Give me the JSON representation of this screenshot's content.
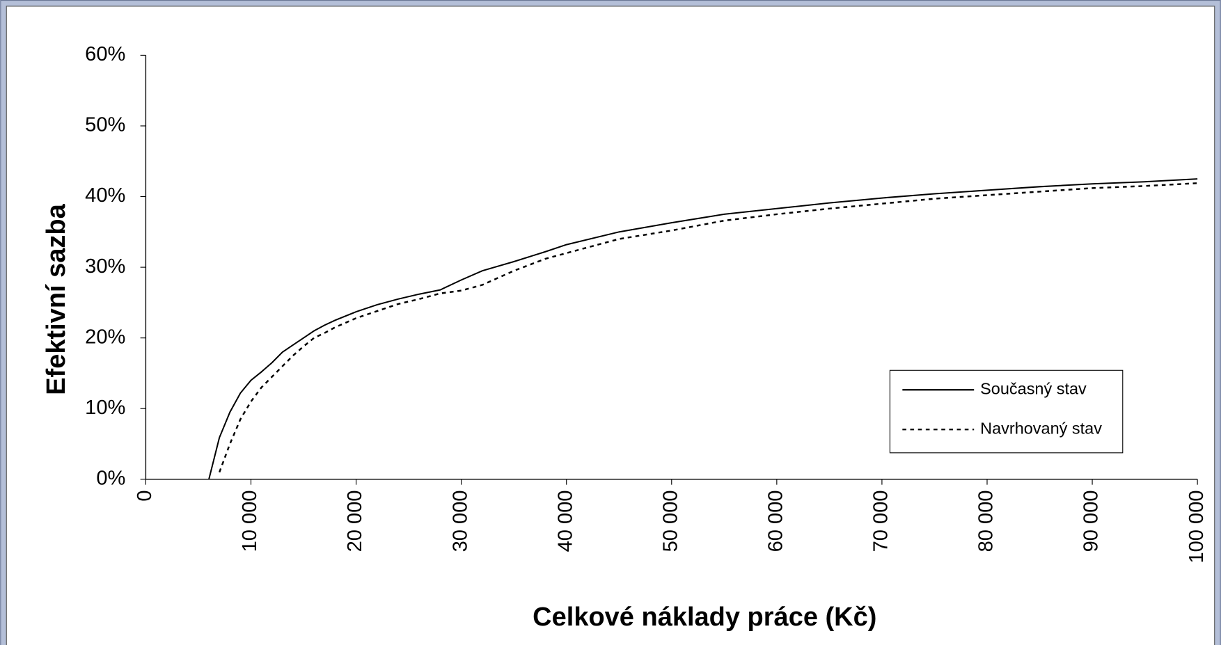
{
  "chart_data": {
    "type": "line",
    "xlabel": "Celkové náklady práce (Kč)",
    "ylabel": "Efektivní sazba",
    "xlim": [
      0,
      100000
    ],
    "ylim": [
      0,
      60
    ],
    "xticks": [
      0,
      {
        "value": 10000,
        "label": "10 000"
      },
      {
        "value": 20000,
        "label": "20 000"
      },
      {
        "value": 30000,
        "label": "30 000"
      },
      {
        "value": 40000,
        "label": "40 000"
      },
      {
        "value": 50000,
        "label": "50 000"
      },
      {
        "value": 60000,
        "label": "60 000"
      },
      {
        "value": 70000,
        "label": "70 000"
      },
      {
        "value": 80000,
        "label": "80 000"
      },
      {
        "value": 90000,
        "label": "90 000"
      },
      {
        "value": 100000,
        "label": "100 000"
      }
    ],
    "yticks": [
      {
        "value": 0,
        "label": "0%"
      },
      {
        "value": 10,
        "label": "10%"
      },
      {
        "value": 20,
        "label": "20%"
      },
      {
        "value": 30,
        "label": "30%"
      },
      {
        "value": 40,
        "label": "40%"
      },
      {
        "value": 50,
        "label": "50%"
      },
      {
        "value": 60,
        "label": "60%"
      }
    ],
    "grid": false,
    "legend": "lower right",
    "series": [
      {
        "name": "Současný stav",
        "color": "#000000",
        "line_style": "solid",
        "x": [
          6000,
          7000,
          8000,
          9000,
          10000,
          11000,
          12000,
          13000,
          14000,
          15000,
          16000,
          17000,
          18000,
          20000,
          22000,
          24000,
          26000,
          28000,
          30000,
          32000,
          35000,
          38000,
          40000,
          45000,
          50000,
          55000,
          60000,
          65000,
          70000,
          75000,
          80000,
          85000,
          90000,
          95000,
          100000
        ],
        "values": [
          0,
          5.9,
          9.5,
          12.2,
          14,
          15.2,
          16.5,
          18,
          19,
          20,
          21,
          21.8,
          22.5,
          23.7,
          24.7,
          25.5,
          26.2,
          26.8,
          28.2,
          29.5,
          30.8,
          32.2,
          33.2,
          35,
          36.3,
          37.5,
          38.3,
          39.1,
          39.8,
          40.4,
          40.9,
          41.4,
          41.8,
          42.1,
          42.5
        ]
      },
      {
        "name": "Navrhovaný stav",
        "color": "#000000",
        "line_style": "dashed",
        "x": [
          7000,
          8000,
          9000,
          10000,
          11000,
          12000,
          13000,
          14000,
          15000,
          16000,
          17000,
          18000,
          20000,
          22000,
          24000,
          26000,
          28000,
          30000,
          32000,
          35000,
          38000,
          40000,
          45000,
          50000,
          55000,
          60000,
          65000,
          70000,
          75000,
          80000,
          85000,
          90000,
          95000,
          100000
        ],
        "values": [
          1,
          5,
          8.5,
          11,
          13,
          14.5,
          16,
          17.5,
          18.8,
          20,
          20.7,
          21.5,
          22.8,
          23.8,
          24.8,
          25.5,
          26.3,
          26.7,
          27.5,
          29.5,
          31.2,
          32,
          34,
          35.2,
          36.6,
          37.5,
          38.3,
          39,
          39.7,
          40.2,
          40.7,
          41.2,
          41.5,
          41.9
        ]
      }
    ]
  }
}
